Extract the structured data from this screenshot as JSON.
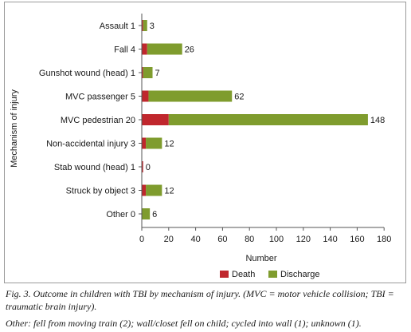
{
  "chart_data": {
    "type": "bar",
    "orientation": "horizontal",
    "stacked": true,
    "categories": [
      "Assault 1",
      "Fall 4",
      "Gunshot wound (head) 1",
      "MVC passenger 5",
      "MVC pedestrian 20",
      "Non-accidental injury 3",
      "Stab wound (head) 1",
      "Struck by object 3",
      "Other 0"
    ],
    "series": [
      {
        "name": "Death",
        "values": [
          1,
          4,
          1,
          5,
          20,
          3,
          1,
          3,
          0
        ],
        "color": "#c0272d"
      },
      {
        "name": "Discharge",
        "values": [
          3,
          26,
          7,
          62,
          148,
          12,
          0,
          12,
          6
        ],
        "color": "#7f9c2e"
      }
    ],
    "data_labels": [
      "3",
      "26",
      "7",
      "62",
      "148",
      "12",
      "0",
      "12",
      "6"
    ],
    "xlabel": "Number",
    "ylabel": "Mechanism of injury",
    "xlim": [
      0,
      180
    ],
    "xticks": [
      "0",
      "20",
      "40",
      "60",
      "80",
      "100",
      "120",
      "140",
      "160",
      "180"
    ],
    "grid": false,
    "legend_position": "bottom"
  },
  "caption": {
    "line1": "Fig. 3. Outcome in children with TBI by mechanism of injury. (MVC = motor vehicle collision; TBI = traumatic brain injury).",
    "line2": "Other: fell from moving train (2); wall/closet fell on child; cycled into wall (1); unknown (1)."
  }
}
